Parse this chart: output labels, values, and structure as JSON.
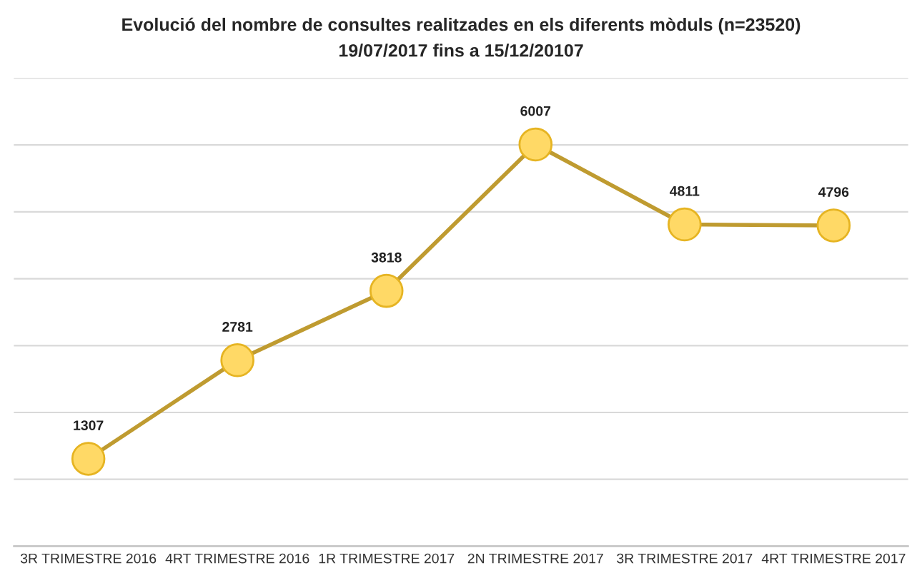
{
  "chart_data": {
    "type": "line",
    "title": "Evolució del nombre de consultes realitzades en els diferents mòduls (n=23520)",
    "subtitle": "19/07/2017 fins a 15/12/20107",
    "categories": [
      "3R TRIMESTRE 2016",
      "4RT TRIMESTRE 2016",
      "1R TRIMESTRE 2017",
      "2N TRIMESTRE 2017",
      "3R TRIMESTRE 2017",
      "4RT TRIMESTRE 2017"
    ],
    "series": [
      {
        "color": "#bf9b30",
        "colors": [
          "#ffd966",
          "#ffd966",
          "#ffd966",
          "#ffd966",
          "#ffd966",
          "#ffd966"
        ],
        "values": [
          1307,
          2781,
          3818,
          6007,
          4811,
          4796
        ]
      }
    ],
    "ylim": [
      0,
      7000
    ],
    "yticks": [
      {
        "value": 0,
        "label": null
      },
      {
        "value": 1000,
        "label": null
      },
      {
        "value": 2000,
        "label": null
      },
      {
        "value": 3000,
        "label": null
      },
      {
        "value": 4000,
        "label": null
      },
      {
        "value": 5000,
        "label": null
      },
      {
        "value": 6000,
        "label": null
      },
      {
        "value": 7000,
        "label": null
      }
    ],
    "grid": "y",
    "tick_labels": "x",
    "marker": "circle",
    "line_style": "solid",
    "data_labels": true,
    "legend": false
  }
}
